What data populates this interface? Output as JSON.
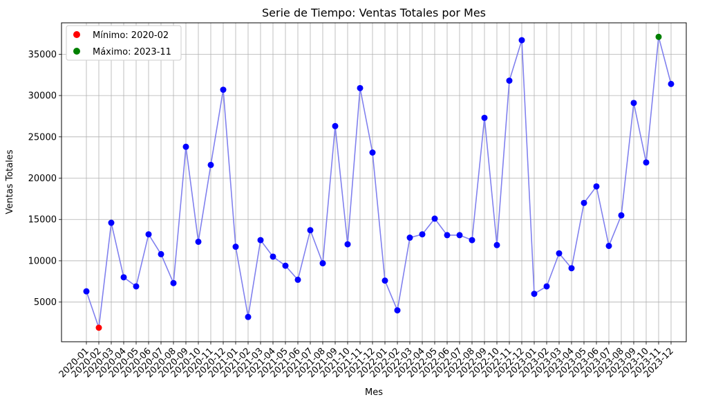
{
  "chart_data": {
    "type": "line",
    "title": "Serie de Tiempo: Ventas Totales por Mes",
    "xlabel": "Mes",
    "ylabel": "Ventas Totales",
    "grid": true,
    "legend_position": "top-left",
    "ylim": [
      200,
      38800
    ],
    "yticks": [
      5000,
      10000,
      15000,
      20000,
      25000,
      30000,
      35000
    ],
    "colors": {
      "line": "#8080ee",
      "points": "#0000ff",
      "min": "#ff0000",
      "max": "#008000"
    },
    "categories": [
      "2020-01",
      "2020-02",
      "2020-03",
      "2020-04",
      "2020-05",
      "2020-06",
      "2020-07",
      "2020-08",
      "2020-09",
      "2020-10",
      "2020-11",
      "2020-12",
      "2021-01",
      "2021-02",
      "2021-03",
      "2021-04",
      "2021-05",
      "2021-06",
      "2021-07",
      "2021-08",
      "2021-09",
      "2021-10",
      "2021-11",
      "2021-12",
      "2022-01",
      "2022-02",
      "2022-03",
      "2022-04",
      "2022-05",
      "2022-06",
      "2022-07",
      "2022-08",
      "2022-09",
      "2022-10",
      "2022-11",
      "2022-12",
      "2023-01",
      "2023-02",
      "2023-03",
      "2023-04",
      "2023-05",
      "2023-06",
      "2023-07",
      "2023-08",
      "2023-09",
      "2023-10",
      "2023-11",
      "2023-12"
    ],
    "values": [
      6300,
      1900,
      14600,
      8000,
      6900,
      13200,
      10800,
      7300,
      23800,
      12300,
      21600,
      30700,
      11700,
      3200,
      12500,
      10500,
      9400,
      7700,
      13700,
      9700,
      26300,
      12000,
      30900,
      23100,
      7600,
      4000,
      12800,
      13200,
      15100,
      13100,
      13100,
      12500,
      27300,
      11900,
      31800,
      36700,
      6000,
      6900,
      10900,
      9100,
      17000,
      19000,
      11800,
      15500,
      29100,
      21900,
      37100,
      31400
    ],
    "min": {
      "label": "Mínimo: 2020-02",
      "index": 1
    },
    "max": {
      "label": "Máximo: 2023-11",
      "index": 46
    }
  }
}
